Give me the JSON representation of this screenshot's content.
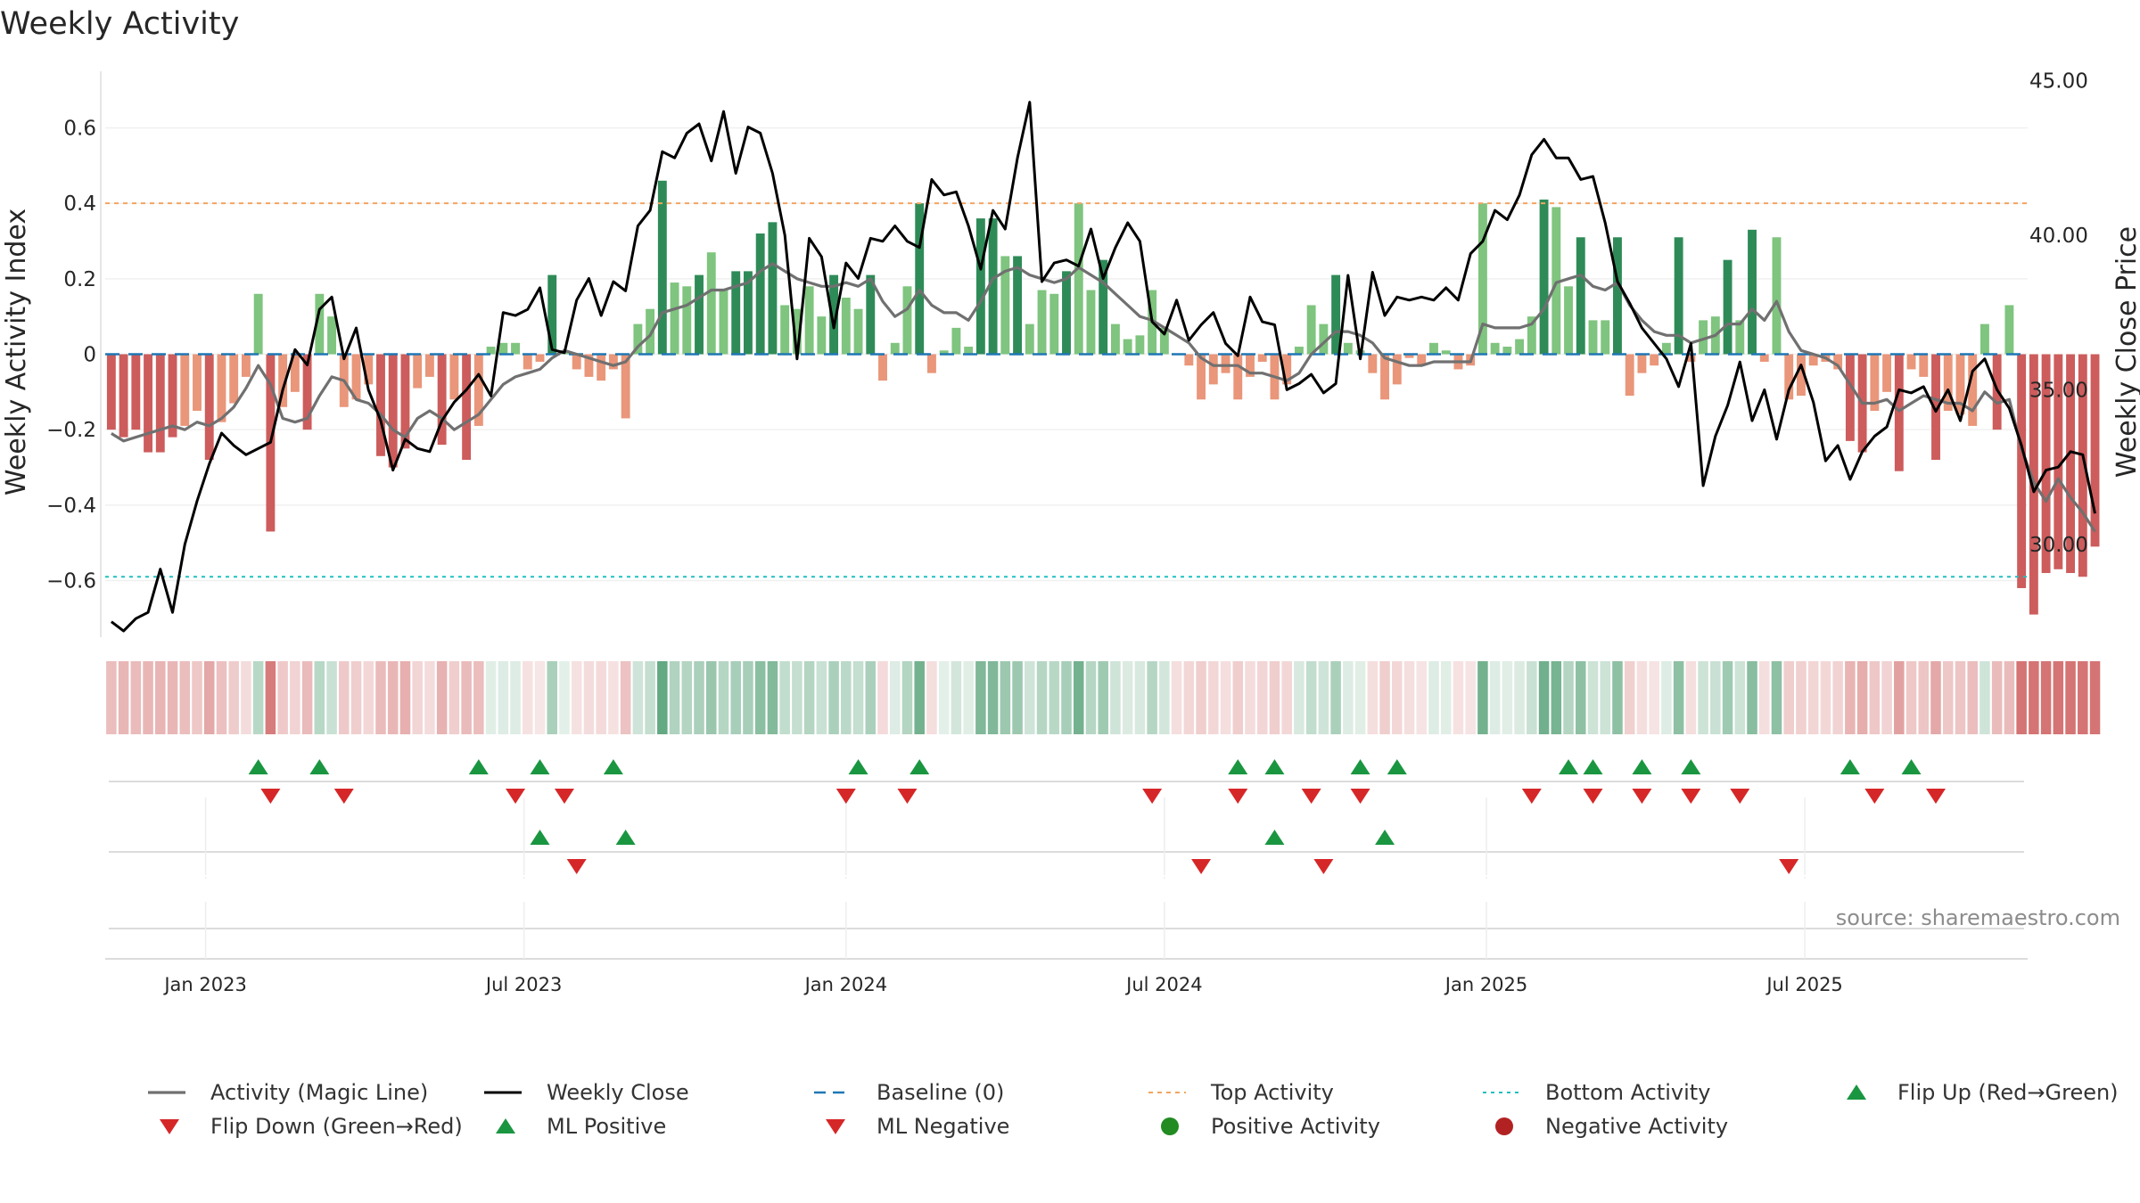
{
  "chart_data": {
    "type": "bar+line",
    "title": "Weekly Activity",
    "ylabel": "Weekly Activity Index",
    "y2label": "Weekly Close Price",
    "source": "source: sharemaestro.com",
    "ylim": [
      -0.75,
      0.75
    ],
    "y2lim": [
      27,
      45.3
    ],
    "yticks": [
      {
        "v": 0.6,
        "label": "0.6"
      },
      {
        "v": 0.4,
        "label": "0.4"
      },
      {
        "v": 0.2,
        "label": "0.2"
      },
      {
        "v": 0,
        "label": "0"
      },
      {
        "v": -0.2,
        "label": "−0.2"
      },
      {
        "v": -0.4,
        "label": "−0.4"
      },
      {
        "v": -0.6,
        "label": "−0.6"
      }
    ],
    "y2ticks": [
      {
        "v": 45,
        "label": "45.00"
      },
      {
        "v": 40,
        "label": "40.00"
      },
      {
        "v": 35,
        "label": "35.00"
      },
      {
        "v": 30,
        "label": "30.00"
      }
    ],
    "xticks": [
      {
        "w": 7.7,
        "label": "Jan 2023"
      },
      {
        "w": 33.7,
        "label": "Jul 2023"
      },
      {
        "w": 60,
        "label": "Jan 2024"
      },
      {
        "w": 86,
        "label": "Jul 2024"
      },
      {
        "w": 112.3,
        "label": "Jan 2025"
      },
      {
        "w": 138.3,
        "label": "Jul 2025"
      }
    ],
    "week_count": 157,
    "top_activity": 0.4,
    "bottom_activity": -0.59,
    "baseline": 0,
    "series": [
      {
        "name": "Activity Index (weekly bars)",
        "values": [
          -0.2,
          -0.22,
          -0.2,
          -0.26,
          -0.26,
          -0.22,
          -0.19,
          -0.15,
          -0.28,
          -0.18,
          -0.13,
          -0.06,
          0.16,
          -0.47,
          -0.14,
          -0.1,
          -0.2,
          0.16,
          0.1,
          -0.14,
          -0.12,
          -0.08,
          -0.27,
          -0.3,
          -0.25,
          -0.09,
          -0.06,
          -0.24,
          -0.12,
          -0.28,
          -0.19,
          0.02,
          0.03,
          0.03,
          -0.04,
          -0.02,
          0.21,
          0.01,
          -0.04,
          -0.06,
          -0.07,
          -0.04,
          -0.17,
          0.08,
          0.12,
          0.46,
          0.19,
          0.18,
          0.21,
          0.27,
          0.17,
          0.22,
          0.22,
          0.32,
          0.35,
          0.13,
          0.12,
          0.18,
          0.1,
          0.21,
          0.15,
          0.12,
          0.21,
          -0.07,
          0.03,
          0.18,
          0.4,
          -0.05,
          0.01,
          0.07,
          0.02,
          0.36,
          0.36,
          0.26,
          0.26,
          0.08,
          0.17,
          0.16,
          0.22,
          0.4,
          0.17,
          0.25,
          0.08,
          0.04,
          0.05,
          0.17,
          0.07,
          0.0,
          -0.03,
          -0.12,
          -0.08,
          -0.05,
          -0.12,
          -0.06,
          -0.02,
          -0.12,
          -0.08,
          0.02,
          0.13,
          0.08,
          0.21,
          0.03,
          0.01,
          -0.05,
          -0.12,
          -0.08,
          -0.01,
          -0.03,
          0.03,
          0.01,
          -0.04,
          -0.03,
          0.4,
          0.03,
          0.02,
          0.04,
          0.1,
          0.41,
          0.39,
          0.18,
          0.31,
          0.09,
          0.09,
          0.31,
          -0.11,
          -0.05,
          -0.03,
          0.03,
          0.31,
          -0.02,
          0.09,
          0.1,
          0.25,
          0.09,
          0.33,
          -0.02,
          0.31,
          -0.12,
          -0.11,
          -0.03,
          -0.02,
          -0.04,
          -0.23,
          -0.26,
          -0.15,
          -0.1,
          -0.31,
          -0.04,
          -0.06,
          -0.28,
          -0.15,
          -0.16,
          -0.19,
          0.08,
          -0.2,
          0.13,
          -0.62,
          -0.69,
          -0.58,
          -0.57,
          -0.58,
          -0.59,
          -0.51
        ]
      },
      {
        "name": "Activity (Magic Line)",
        "values": [
          -0.21,
          -0.23,
          -0.22,
          -0.21,
          -0.2,
          -0.19,
          -0.2,
          -0.18,
          -0.19,
          -0.17,
          -0.14,
          -0.09,
          -0.03,
          -0.08,
          -0.17,
          -0.18,
          -0.17,
          -0.11,
          -0.06,
          -0.07,
          -0.12,
          -0.13,
          -0.16,
          -0.2,
          -0.22,
          -0.17,
          -0.15,
          -0.17,
          -0.2,
          -0.18,
          -0.16,
          -0.12,
          -0.08,
          -0.06,
          -0.05,
          -0.04,
          -0.01,
          0.01,
          0.0,
          -0.01,
          -0.02,
          -0.03,
          -0.02,
          0.02,
          0.05,
          0.11,
          0.12,
          0.13,
          0.15,
          0.17,
          0.17,
          0.18,
          0.19,
          0.22,
          0.24,
          0.22,
          0.2,
          0.19,
          0.18,
          0.18,
          0.19,
          0.18,
          0.2,
          0.14,
          0.1,
          0.12,
          0.17,
          0.13,
          0.11,
          0.11,
          0.09,
          0.14,
          0.2,
          0.22,
          0.23,
          0.21,
          0.2,
          0.19,
          0.2,
          0.23,
          0.21,
          0.19,
          0.16,
          0.13,
          0.1,
          0.09,
          0.07,
          0.05,
          0.03,
          -0.01,
          -0.03,
          -0.03,
          -0.03,
          -0.05,
          -0.05,
          -0.06,
          -0.07,
          -0.05,
          0.0,
          0.03,
          0.06,
          0.06,
          0.05,
          0.03,
          -0.01,
          -0.02,
          -0.03,
          -0.03,
          -0.02,
          -0.02,
          -0.02,
          -0.02,
          0.08,
          0.07,
          0.07,
          0.07,
          0.08,
          0.12,
          0.19,
          0.2,
          0.21,
          0.18,
          0.17,
          0.19,
          0.13,
          0.09,
          0.06,
          0.05,
          0.05,
          0.03,
          0.04,
          0.05,
          0.08,
          0.08,
          0.12,
          0.09,
          0.14,
          0.06,
          0.01,
          0.0,
          -0.01,
          -0.03,
          -0.08,
          -0.13,
          -0.13,
          -0.12,
          -0.15,
          -0.13,
          -0.11,
          -0.12,
          -0.13,
          -0.13,
          -0.15,
          -0.1,
          -0.13,
          -0.12,
          -0.25,
          -0.34,
          -0.39,
          -0.33,
          -0.38,
          -0.42,
          -0.47
        ]
      },
      {
        "name": "Weekly Close",
        "values": [
          27.5,
          27.2,
          27.6,
          27.8,
          29.2,
          27.8,
          30.0,
          31.4,
          32.6,
          33.6,
          33.2,
          32.9,
          33.1,
          33.3,
          35.0,
          36.3,
          35.8,
          37.6,
          38.0,
          36.0,
          37.0,
          35.0,
          34.0,
          32.4,
          33.4,
          33.1,
          33.0,
          34.0,
          34.6,
          35.0,
          35.5,
          34.8,
          37.5,
          37.4,
          37.6,
          38.3,
          36.3,
          36.2,
          37.9,
          38.6,
          37.4,
          38.5,
          38.2,
          40.3,
          40.8,
          42.7,
          42.5,
          43.3,
          43.6,
          42.4,
          44.0,
          42.0,
          43.5,
          43.3,
          42.0,
          40.0,
          36.0,
          39.9,
          39.3,
          37.0,
          39.1,
          38.6,
          39.9,
          39.8,
          40.3,
          39.8,
          39.6,
          41.8,
          41.3,
          41.4,
          40.3,
          38.9,
          40.8,
          40.2,
          42.5,
          44.3,
          38.5,
          39.1,
          39.2,
          39.0,
          40.2,
          38.6,
          39.6,
          40.4,
          39.8,
          37.2,
          36.8,
          37.9,
          36.6,
          37.1,
          37.5,
          36.5,
          36.1,
          38.0,
          37.2,
          37.1,
          35.0,
          35.2,
          35.5,
          34.9,
          35.2,
          38.7,
          36.0,
          38.8,
          37.4,
          38.0,
          37.9,
          38.0,
          37.9,
          38.3,
          37.9,
          39.4,
          39.8,
          40.8,
          40.5,
          41.3,
          42.6,
          43.1,
          42.5,
          42.5,
          41.8,
          41.9,
          40.4,
          38.5,
          37.8,
          37.0,
          36.5,
          36.0,
          35.1,
          36.5,
          31.9,
          33.5,
          34.5,
          35.9,
          34.0,
          35.0,
          33.4,
          35.0,
          35.8,
          34.6,
          32.7,
          33.2,
          32.1,
          33.0,
          33.5,
          33.8,
          35.0,
          34.9,
          35.1,
          34.3,
          35.0,
          34.0,
          35.6,
          36.0,
          35.0,
          34.4,
          33.2,
          31.7,
          32.4,
          32.5,
          33.0,
          32.9,
          31.0
        ]
      }
    ],
    "heat_strip": [
      -0.19,
      -0.22,
      -0.2,
      -0.22,
      -0.23,
      -0.22,
      -0.19,
      -0.15,
      -0.28,
      -0.18,
      -0.13,
      -0.06,
      0.16,
      -0.47,
      -0.14,
      -0.1,
      -0.2,
      0.16,
      0.1,
      -0.14,
      -0.12,
      -0.08,
      -0.2,
      -0.22,
      -0.25,
      -0.09,
      -0.06,
      -0.24,
      -0.12,
      -0.2,
      -0.19,
      0.02,
      0.03,
      0.03,
      -0.04,
      -0.02,
      0.21,
      0.01,
      -0.04,
      -0.06,
      -0.07,
      -0.04,
      -0.17,
      0.08,
      0.12,
      0.46,
      0.19,
      0.18,
      0.21,
      0.27,
      0.17,
      0.22,
      0.22,
      0.32,
      0.35,
      0.13,
      0.12,
      0.18,
      0.1,
      0.21,
      0.15,
      0.12,
      0.21,
      -0.07,
      0.03,
      0.18,
      0.4,
      -0.05,
      0.01,
      0.07,
      0.02,
      0.36,
      0.36,
      0.26,
      0.26,
      0.08,
      0.17,
      0.16,
      0.22,
      0.4,
      0.17,
      0.25,
      0.08,
      0.04,
      0.05,
      0.17,
      0.07,
      -0.05,
      -0.08,
      -0.12,
      -0.08,
      -0.05,
      -0.12,
      -0.06,
      -0.09,
      -0.12,
      -0.08,
      0.05,
      0.13,
      0.08,
      0.21,
      0.03,
      0.02,
      -0.05,
      -0.12,
      -0.08,
      -0.05,
      -0.03,
      0.03,
      0.02,
      -0.04,
      -0.03,
      0.4,
      0.03,
      0.02,
      0.04,
      0.1,
      0.41,
      0.39,
      0.18,
      0.31,
      0.09,
      0.09,
      0.31,
      -0.11,
      -0.05,
      -0.03,
      0.03,
      0.31,
      -0.05,
      0.09,
      0.1,
      0.25,
      0.09,
      0.33,
      -0.05,
      0.31,
      -0.12,
      -0.11,
      -0.09,
      -0.08,
      -0.1,
      -0.23,
      -0.26,
      -0.15,
      -0.1,
      -0.31,
      -0.15,
      -0.16,
      -0.28,
      -0.15,
      -0.16,
      -0.19,
      0.08,
      -0.2,
      -0.2,
      -0.62,
      -0.69,
      -0.58,
      -0.57,
      -0.58,
      -0.59,
      -0.51
    ],
    "events": {
      "flip_up_weeks": [
        12,
        17,
        30,
        35,
        41,
        61,
        66,
        92,
        95,
        102,
        105,
        119,
        121,
        125,
        129,
        142,
        147
      ],
      "flip_down_weeks": [
        13,
        19,
        33,
        37,
        60,
        65,
        85,
        92,
        98,
        102,
        116,
        121,
        125,
        129,
        133,
        144,
        149
      ],
      "ml_positive_weeks": [
        35,
        42,
        95,
        104
      ],
      "ml_negative_weeks": [
        38,
        89,
        99,
        137
      ]
    },
    "legend": [
      {
        "key": "magic",
        "label": "Activity (Magic Line)"
      },
      {
        "key": "close",
        "label": "Weekly Close"
      },
      {
        "key": "baseline",
        "label": "Baseline (0)"
      },
      {
        "key": "top",
        "label": "Top Activity"
      },
      {
        "key": "bottom",
        "label": "Bottom Activity"
      },
      {
        "key": "flipup",
        "label": "Flip Up (Red→Green)"
      },
      {
        "key": "flipdown",
        "label": "Flip Down (Green→Red)"
      },
      {
        "key": "mlpos",
        "label": "ML Positive"
      },
      {
        "key": "mlneg",
        "label": "ML Negative"
      },
      {
        "key": "posact",
        "label": "Positive Activity"
      },
      {
        "key": "negact",
        "label": "Negative Activity"
      }
    ]
  },
  "colors": {
    "pos_strong": "#2e8b57",
    "pos_light": "#7fc47f",
    "neg_strong": "#cd5c5c",
    "neg_light": "#e9967a",
    "magic": "#707070",
    "close": "#000000",
    "baseline": "#1f77b4",
    "top": "#f4a460",
    "bottom": "#20c0c0",
    "flip_up": "#1a9641",
    "flip_down": "#d62728",
    "pos_dot": "#228b22",
    "neg_dot": "#b22222"
  }
}
